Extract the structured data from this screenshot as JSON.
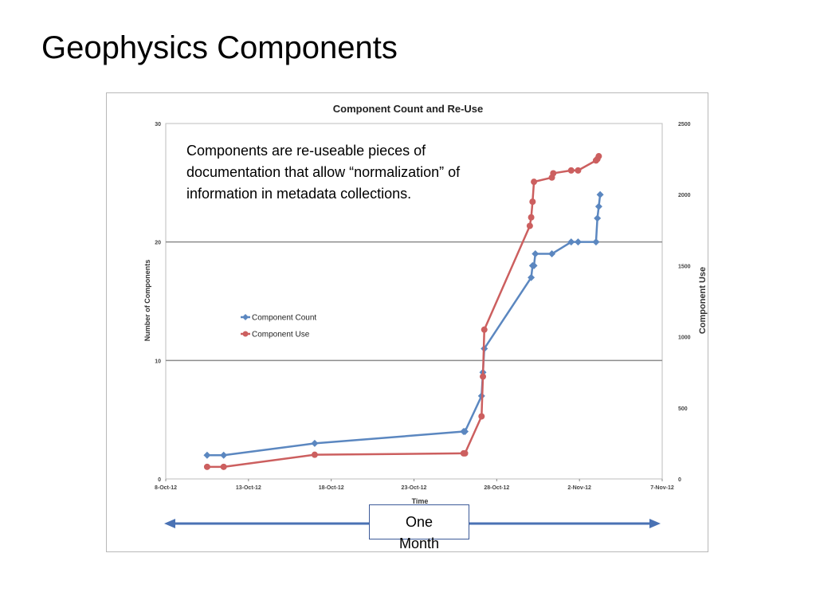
{
  "slide": {
    "title": "Geophysics Components",
    "note": "Components are re-useable pieces of documentation that allow “normalization” of information in metadata collections.",
    "span_label": "One Month"
  },
  "colors": {
    "count": "#5b87c0",
    "use": "#cc5f5f",
    "arrow": "#4a72b4",
    "grid": "#8c8c8c"
  },
  "chart_data": {
    "type": "line",
    "title": "Component Count and Re-Use",
    "xlabel": "Time",
    "ylabel": "Number of Components",
    "y2label": "Component Use",
    "x_ticks": [
      "8-Oct-12",
      "13-Oct-12",
      "18-Oct-12",
      "23-Oct-12",
      "28-Oct-12",
      "2-Nov-12",
      "7-Nov-12"
    ],
    "y_ticks": [
      "0",
      "10",
      "20",
      "30"
    ],
    "y2_ticks": [
      "0",
      "500",
      "1000",
      "1500",
      "2000",
      "2500"
    ],
    "ylim": [
      0,
      30
    ],
    "y2lim": [
      0,
      2500
    ],
    "xlim": [
      "2012-10-08",
      "2012-11-07"
    ],
    "grid": true,
    "legend_position": "center-left",
    "series": [
      {
        "name": "Component Count",
        "axis": "left",
        "color": "#5b87c0",
        "points": [
          [
            "2012-10-10 12:00",
            2
          ],
          [
            "2012-10-11 12:00",
            2
          ],
          [
            "2012-10-17 00:00",
            3
          ],
          [
            "2012-10-26 00:00",
            4
          ],
          [
            "2012-10-26 02:00",
            4
          ],
          [
            "2012-10-27 02:00",
            7
          ],
          [
            "2012-10-27 04:00",
            9
          ],
          [
            "2012-10-27 06:00",
            11
          ],
          [
            "2012-10-30 02:00",
            17
          ],
          [
            "2012-10-30 04:00",
            18
          ],
          [
            "2012-10-30 06:00",
            18
          ],
          [
            "2012-10-30 08:00",
            19
          ],
          [
            "2012-10-31 08:00",
            19
          ],
          [
            "2012-11-01 12:00",
            20
          ],
          [
            "2012-11-01 22:00",
            20
          ],
          [
            "2012-11-03 00:00",
            20
          ],
          [
            "2012-11-03 02:00",
            22
          ],
          [
            "2012-11-03 04:00",
            23
          ],
          [
            "2012-11-03 06:00",
            24
          ]
        ]
      },
      {
        "name": "Component Use",
        "axis": "right",
        "color": "#cc5f5f",
        "points": [
          [
            "2012-10-10 12:00",
            85
          ],
          [
            "2012-10-11 12:00",
            85
          ],
          [
            "2012-10-17 00:00",
            170
          ],
          [
            "2012-10-26 00:00",
            180
          ],
          [
            "2012-10-26 02:00",
            180
          ],
          [
            "2012-10-27 02:00",
            440
          ],
          [
            "2012-10-27 04:00",
            720
          ],
          [
            "2012-10-27 06:00",
            1050
          ],
          [
            "2012-10-30 00:00",
            1780
          ],
          [
            "2012-10-30 02:00",
            1840
          ],
          [
            "2012-10-30 04:00",
            1950
          ],
          [
            "2012-10-30 06:00",
            2090
          ],
          [
            "2012-10-31 08:00",
            2120
          ],
          [
            "2012-10-31 10:00",
            2150
          ],
          [
            "2012-11-01 12:00",
            2170
          ],
          [
            "2012-11-01 22:00",
            2170
          ],
          [
            "2012-11-03 00:00",
            2240
          ],
          [
            "2012-11-03 02:00",
            2250
          ],
          [
            "2012-11-03 04:00",
            2270
          ]
        ]
      }
    ]
  }
}
